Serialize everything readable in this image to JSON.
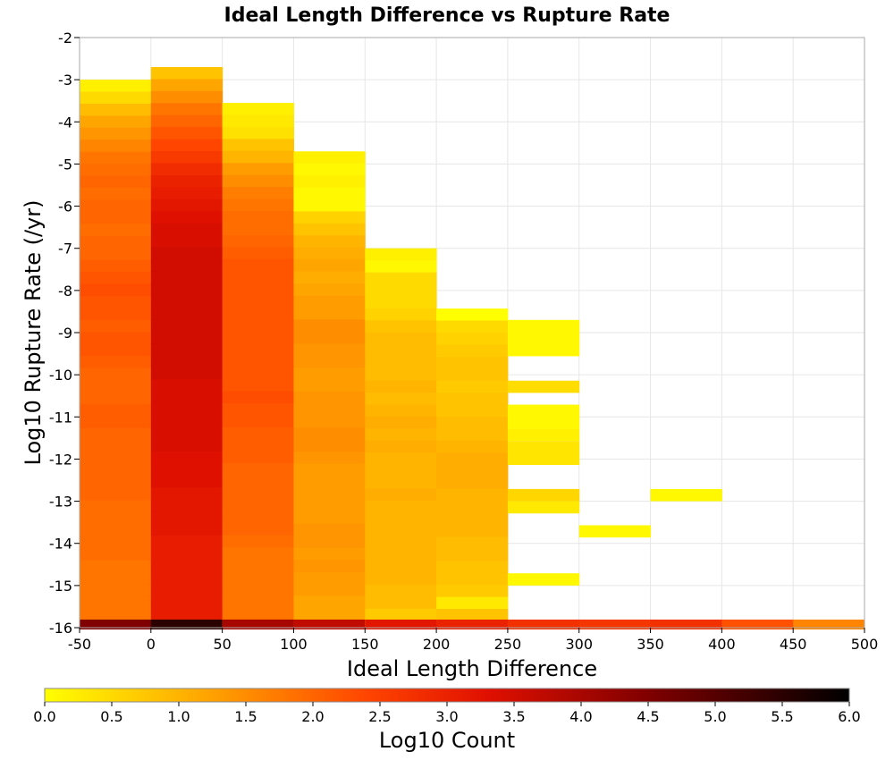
{
  "chart_data": {
    "type": "heatmap",
    "title": "Ideal Length Difference vs Rupture Rate",
    "xlabel": "Ideal Length Difference",
    "ylabel": "Log10 Rupture Rate (/yr)",
    "xlim": [
      -50,
      500
    ],
    "ylim": [
      -16,
      -2
    ],
    "xticks": [
      "-50",
      "0",
      "50",
      "100",
      "150",
      "200",
      "250",
      "300",
      "350",
      "400",
      "450",
      "500"
    ],
    "yticks": [
      "-2",
      "-3",
      "-4",
      "-5",
      "-6",
      "-7",
      "-8",
      "-9",
      "-10",
      "-11",
      "-12",
      "-13",
      "-14",
      "-15",
      "-16"
    ],
    "x_bin_width": 50,
    "y_bin_height": 0.285,
    "grid": true,
    "colorbar": {
      "label": "Log10 Count",
      "min": 0,
      "max": 6,
      "ticks": [
        "0.0",
        "0.5",
        "1.0",
        "1.5",
        "2.0",
        "2.5",
        "3.0",
        "3.5",
        "4.0",
        "4.5",
        "5.0",
        "5.5",
        "6.0"
      ],
      "colors": [
        "#ffff00",
        "#ffa500",
        "#ff4500",
        "#cc0000",
        "#800000",
        "#000000"
      ]
    },
    "cells": [
      {
        "x": -50,
        "y_top": -3.0,
        "y_bottom": -16.0,
        "values": [
          0.2,
          0.5,
          0.9,
          1.2,
          1.4,
          1.6,
          1.8,
          1.9,
          2.0,
          1.9,
          2.0,
          2.0,
          1.9,
          2.0,
          2.0,
          2.1,
          2.2,
          2.3,
          2.2,
          2.2,
          2.1,
          2.2,
          2.2,
          2.1,
          2.0,
          2.0,
          2.0,
          2.1,
          2.1,
          2.0,
          2.0,
          2.0,
          2.0,
          2.0,
          2.0,
          1.9,
          1.9,
          1.9,
          1.9,
          1.9,
          1.8,
          1.8,
          1.8,
          1.8,
          1.8
        ],
        "base": 4.5
      },
      {
        "x": 0,
        "y_top": -2.7,
        "y_bottom": -16.0,
        "values": [
          0.8,
          1.2,
          1.5,
          1.8,
          2.0,
          2.2,
          2.4,
          2.6,
          2.8,
          3.0,
          3.1,
          3.2,
          3.3,
          3.4,
          3.4,
          3.5,
          3.5,
          3.5,
          3.5,
          3.5,
          3.5,
          3.5,
          3.5,
          3.5,
          3.5,
          3.5,
          3.4,
          3.4,
          3.4,
          3.4,
          3.4,
          3.4,
          3.3,
          3.3,
          3.3,
          3.2,
          3.2,
          3.2,
          3.2,
          3.1,
          3.1,
          3.1,
          3.1,
          3.1,
          3.1,
          3.1
        ],
        "base": 5.5
      },
      {
        "x": 50,
        "y_top": -3.55,
        "y_bottom": -16.0,
        "values": [
          0.2,
          0.3,
          0.4,
          0.8,
          1.0,
          1.3,
          1.5,
          1.7,
          1.8,
          1.9,
          1.9,
          2.0,
          2.1,
          2.2,
          2.2,
          2.2,
          2.2,
          2.2,
          2.2,
          2.2,
          2.2,
          2.2,
          2.2,
          2.2,
          2.3,
          2.2,
          2.2,
          2.1,
          2.1,
          2.1,
          2.0,
          2.0,
          2.0,
          2.0,
          2.0,
          2.0,
          1.9,
          1.8,
          1.8,
          1.8,
          1.8,
          1.8,
          1.8,
          1.8,
          1.8
        ],
        "base": 4.0
      },
      {
        "x": 100,
        "y_top": -4.7,
        "y_bottom": -16.0,
        "values": [
          0.2,
          0.1,
          0.2,
          0.1,
          0.1,
          0.6,
          0.8,
          1.0,
          1.1,
          1.2,
          1.1,
          1.2,
          1.3,
          1.3,
          1.5,
          1.5,
          1.4,
          1.4,
          1.3,
          1.3,
          1.4,
          1.4,
          1.4,
          1.5,
          1.5,
          1.4,
          1.3,
          1.3,
          1.3,
          1.3,
          1.3,
          1.4,
          1.4,
          1.3,
          1.4,
          1.3,
          1.3,
          1.2,
          1.2,
          1.2,
          1.2
        ],
        "base": 3.7
      },
      {
        "x": 150,
        "y_top": -7.0,
        "y_bottom": -16.0,
        "values": [
          0.2,
          0.1,
          0.5,
          0.5,
          0.5,
          0.6,
          0.8,
          0.9,
          0.9,
          0.9,
          0.9,
          1.0,
          0.9,
          1.0,
          1.1,
          1.0,
          1.1,
          1.0,
          1.0,
          1.0,
          1.1,
          1.0,
          1.0,
          1.0,
          1.0,
          1.0,
          1.0,
          1.0,
          0.9,
          0.9,
          0.7,
          0.5
        ],
        "base": 3.2
      },
      {
        "x": 200,
        "y_top": -8.43,
        "y_bottom": -16.0,
        "values": [
          0.0,
          0.5,
          0.6,
          0.7,
          0.8,
          0.8,
          0.7,
          0.8,
          0.8,
          0.9,
          0.9,
          1.0,
          1.1,
          1.1,
          1.1,
          1.0,
          1.0,
          1.0,
          1.0,
          0.9,
          0.9,
          0.8,
          0.8,
          0.7,
          0.3,
          0.8
        ],
        "base": 3.0
      },
      {
        "x": 250,
        "y_top": -8.7,
        "y_bottom": -16.0,
        "segments": [
          {
            "y_top": -8.7,
            "y_bottom": -9.56,
            "v": 0.1
          },
          {
            "y_top": -10.14,
            "y_bottom": -10.43,
            "v": 0.45
          },
          {
            "y_top": -10.71,
            "y_bottom": -11.29,
            "v": 0.1
          },
          {
            "y_top": -11.29,
            "y_bottom": -11.57,
            "v": 0.2
          },
          {
            "y_top": -11.57,
            "y_bottom": -12.14,
            "v": 0.35
          },
          {
            "y_top": -12.71,
            "y_bottom": -13.0,
            "v": 0.55
          },
          {
            "y_top": -13.0,
            "y_bottom": -13.29,
            "v": 0.3
          },
          {
            "y_top": -14.71,
            "y_bottom": -15.0,
            "v": 0.1
          }
        ],
        "base": 2.75
      },
      {
        "x": 300,
        "segments": [
          {
            "y_top": -13.57,
            "y_bottom": -13.86,
            "v": 0.1
          }
        ],
        "base": 2.65
      },
      {
        "x": 350,
        "segments": [
          {
            "y_top": -12.71,
            "y_bottom": -13.0,
            "v": 0.1
          }
        ],
        "base": 2.75
      },
      {
        "x": 400,
        "segments": [],
        "base": 2.25
      },
      {
        "x": 450,
        "segments": [],
        "base": 1.6
      }
    ]
  }
}
